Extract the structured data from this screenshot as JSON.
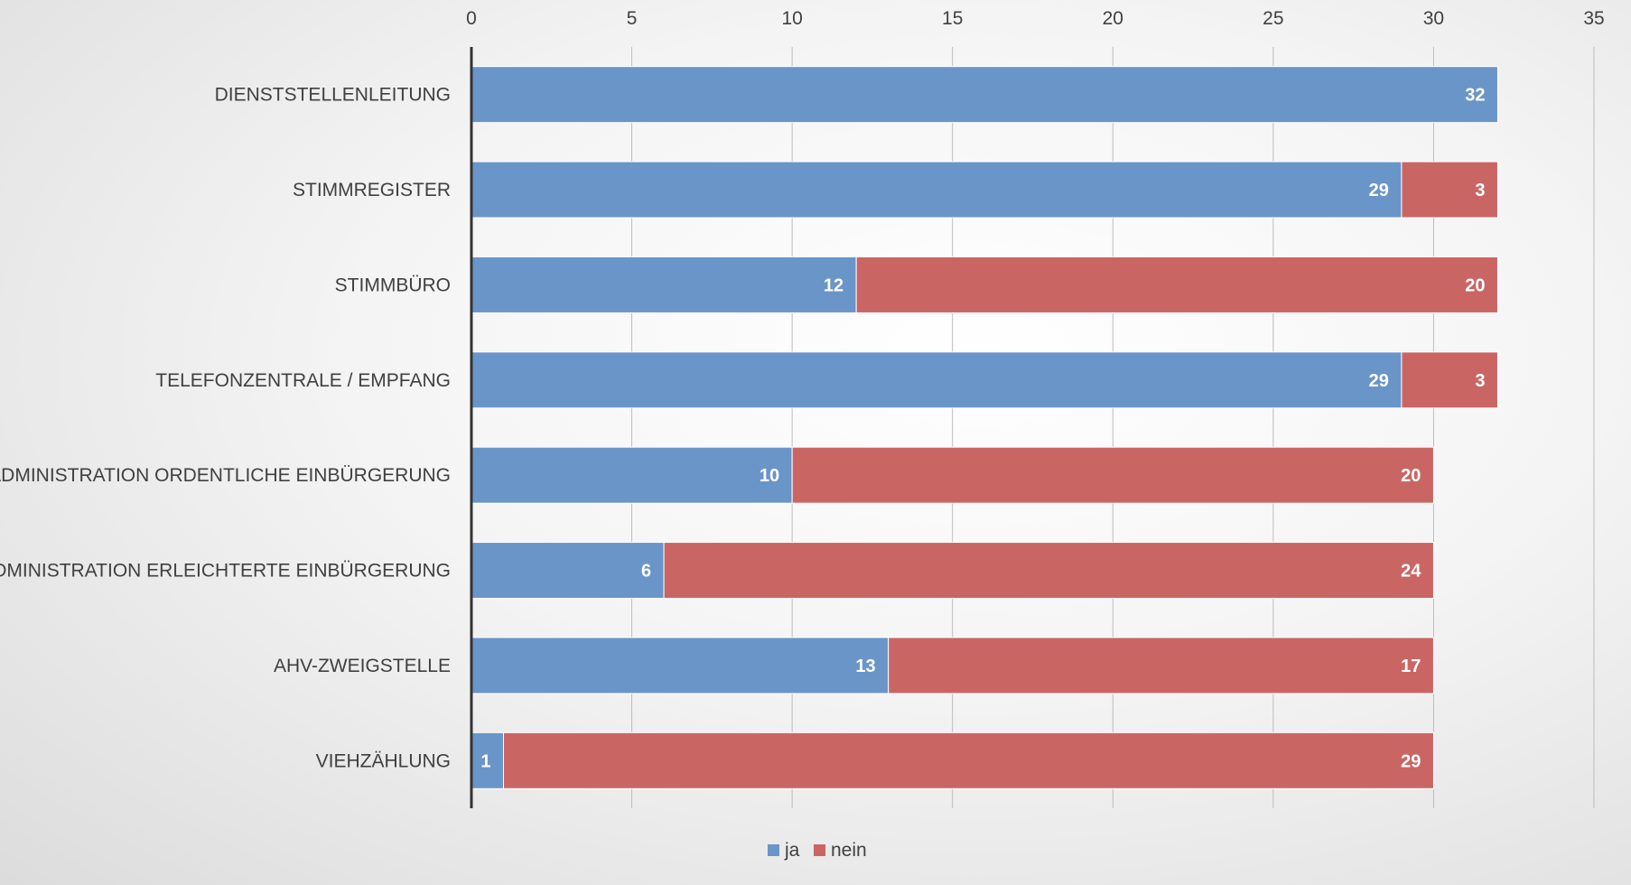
{
  "chart_data": {
    "type": "bar",
    "orientation": "horizontal",
    "stacked": true,
    "title": "",
    "xlabel": "",
    "ylabel": "",
    "xlim": [
      0,
      35
    ],
    "x_ticks": [
      "0",
      "5",
      "10",
      "15",
      "20",
      "25",
      "30",
      "35"
    ],
    "x_axis_position": "top",
    "grid": true,
    "legend_position": "bottom",
    "categories": [
      "DIENSTSTELLENLEITUNG",
      "STIMMREGISTER",
      "STIMMBÜRO",
      "TELEFONZENTRALE / EMPFANG",
      "ADMINISTRATION ORDENTLICHE EINBÜRGERUNG",
      "ADMINISTRATION ERLEICHTERTE EINBÜRGERUNG",
      "AHV-ZWEIGSTELLE",
      "VIEHZÄHLUNG"
    ],
    "series": [
      {
        "name": "ja",
        "color": "#6a95c8",
        "values": [
          32,
          29,
          12,
          29,
          10,
          6,
          13,
          1
        ]
      },
      {
        "name": "nein",
        "color": "#c96664",
        "values": [
          0,
          3,
          20,
          3,
          20,
          24,
          17,
          29
        ]
      }
    ]
  }
}
